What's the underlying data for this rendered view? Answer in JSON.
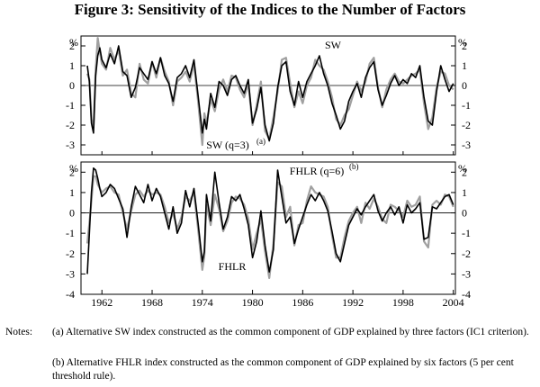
{
  "title": "Figure 3: Sensitivity of the Indices to the Number of Factors",
  "chart_data": [
    {
      "type": "line",
      "panel": "top",
      "unit_label": "%",
      "ylim": [
        -3.5,
        2.5
      ],
      "yticks": [
        2,
        1,
        0,
        -1,
        -2,
        -3
      ],
      "xlim": [
        1959.5,
        2004.25
      ],
      "series": [
        {
          "name": "SW",
          "color": "#000000",
          "x": [
            1960.25,
            1960.5,
            1960.75,
            1961,
            1961.25,
            1961.5,
            1961.75,
            1962,
            1962.5,
            1963,
            1963.5,
            1964,
            1964.5,
            1965,
            1965.5,
            1966,
            1966.5,
            1967,
            1967.5,
            1968,
            1968.5,
            1969,
            1969.5,
            1970,
            1970.5,
            1971,
            1971.5,
            1972,
            1972.5,
            1973,
            1973.5,
            1974,
            1974.25,
            1974.5,
            1975,
            1975.5,
            1976,
            1976.5,
            1977,
            1977.5,
            1978,
            1978.5,
            1979,
            1979.5,
            1980,
            1980.5,
            1981,
            1981.5,
            1982,
            1982.5,
            1983,
            1983.5,
            1984,
            1984.5,
            1985,
            1985.5,
            1986,
            1986.5,
            1987,
            1987.5,
            1988,
            1988.5,
            1989,
            1989.5,
            1990,
            1990.5,
            1991,
            1991.5,
            1992,
            1992.5,
            1993,
            1993.5,
            1994,
            1994.5,
            1995,
            1995.5,
            1996,
            1996.5,
            1997,
            1997.5,
            1998,
            1998.5,
            1999,
            1999.5,
            2000,
            2000.5,
            2001,
            2001.5,
            2002,
            2002.5,
            2003,
            2003.5,
            2004
          ],
          "y": [
            1.0,
            0.2,
            -1.9,
            -2.4,
            0.5,
            1.5,
            1.9,
            1.3,
            0.9,
            1.6,
            1.1,
            2.0,
            0.7,
            0.5,
            -0.6,
            -0.1,
            0.9,
            0.6,
            0.3,
            1.2,
            0.6,
            1.4,
            0.5,
            0.1,
            -0.8,
            0.4,
            0.6,
            1.0,
            0.4,
            1.3,
            -0.5,
            -2.4,
            -1.7,
            -2.2,
            -0.4,
            -1.1,
            0.2,
            0.0,
            -0.5,
            0.3,
            0.5,
            0.0,
            -0.4,
            0.3,
            -1.9,
            -1.2,
            -0.1,
            -2.0,
            -2.8,
            -1.9,
            -0.1,
            1.0,
            1.2,
            -0.3,
            -1.0,
            0.2,
            -0.6,
            0.2,
            0.6,
            1.0,
            1.5,
            0.6,
            0.0,
            -0.9,
            -1.5,
            -2.2,
            -1.8,
            -0.8,
            -0.3,
            0.1,
            -0.6,
            0.4,
            0.9,
            1.2,
            -0.2,
            -1.0,
            -0.5,
            0.1,
            0.5,
            0.0,
            0.3,
            0.1,
            0.6,
            0.4,
            1.0,
            -0.6,
            -1.8,
            -2.0,
            -0.3,
            1.0,
            0.3,
            -0.3,
            0.1
          ]
        },
        {
          "name": "SW (q=3)",
          "color": "#a0a0a0",
          "x": [
            1960.25,
            1960.5,
            1960.75,
            1961,
            1961.25,
            1961.5,
            1961.75,
            1962,
            1962.5,
            1963,
            1963.5,
            1964,
            1964.5,
            1965,
            1965.5,
            1966,
            1966.5,
            1967,
            1967.5,
            1968,
            1968.5,
            1969,
            1969.5,
            1970,
            1970.5,
            1971,
            1971.5,
            1972,
            1972.5,
            1973,
            1973.5,
            1974,
            1974.25,
            1974.5,
            1975,
            1975.5,
            1976,
            1976.5,
            1977,
            1977.5,
            1978,
            1978.5,
            1979,
            1979.5,
            1980,
            1980.5,
            1981,
            1981.5,
            1982,
            1982.5,
            1983,
            1983.5,
            1984,
            1984.5,
            1985,
            1985.5,
            1986,
            1986.5,
            1987,
            1987.5,
            1988,
            1988.5,
            1989,
            1989.5,
            1990,
            1990.5,
            1991,
            1991.5,
            1992,
            1992.5,
            1993,
            1993.5,
            1994,
            1994.5,
            1995,
            1995.5,
            1996,
            1996.5,
            1997,
            1997.5,
            1998,
            1998.5,
            1999,
            1999.5,
            2000,
            2000.5,
            2001,
            2001.5,
            2002,
            2002.5,
            2003,
            2003.5,
            2004
          ],
          "y": [
            0.6,
            0.3,
            -1.7,
            -2.1,
            0.8,
            2.4,
            1.7,
            1.1,
            0.8,
            1.9,
            1.3,
            1.8,
            0.5,
            0.8,
            -0.4,
            -0.6,
            1.1,
            0.3,
            0.1,
            1.2,
            0.4,
            1.4,
            0.7,
            0.2,
            -1.0,
            0.2,
            0.4,
            0.7,
            0.2,
            1.1,
            -0.8,
            -3.0,
            -1.4,
            -1.9,
            -0.7,
            -1.3,
            -0.2,
            0.3,
            -0.3,
            0.5,
            0.4,
            -0.2,
            -0.6,
            0.1,
            -2.0,
            -1.0,
            0.2,
            -2.3,
            -2.7,
            -1.6,
            -0.3,
            1.3,
            1.4,
            0.1,
            -1.1,
            -0.3,
            -0.9,
            0.0,
            0.4,
            1.3,
            1.0,
            0.8,
            0.2,
            -0.6,
            -1.7,
            -2.0,
            -1.5,
            -1.2,
            -0.5,
            0.2,
            -0.3,
            0.2,
            1.1,
            1.4,
            -0.1,
            -1.1,
            -0.2,
            0.3,
            0.6,
            0.2,
            0.1,
            0.3,
            0.5,
            0.6,
            0.8,
            -0.9,
            -2.2,
            -1.6,
            -0.1,
            0.7,
            0.6,
            0.0,
            -0.2
          ]
        }
      ],
      "annotations": [
        "SW",
        "SW (q=3)",
        "(a)"
      ]
    },
    {
      "type": "line",
      "panel": "bottom",
      "unit_label": "%",
      "ylim": [
        -4,
        2.5
      ],
      "yticks": [
        2,
        1,
        0,
        -1,
        -2,
        -3,
        -4
      ],
      "xlim": [
        1959.5,
        2004.25
      ],
      "xticks": [
        1962,
        1968,
        1974,
        1980,
        1986,
        1992,
        1998,
        2004
      ],
      "series": [
        {
          "name": "FHLR",
          "color": "#000000",
          "x": [
            1960.25,
            1960.5,
            1960.75,
            1961,
            1961.25,
            1961.5,
            1961.75,
            1962,
            1962.5,
            1963,
            1963.5,
            1964,
            1964.5,
            1965,
            1965.5,
            1966,
            1966.5,
            1967,
            1967.5,
            1968,
            1968.5,
            1969,
            1969.5,
            1970,
            1970.5,
            1971,
            1971.5,
            1972,
            1972.5,
            1973,
            1973.5,
            1974,
            1974.25,
            1974.5,
            1975,
            1975.5,
            1976,
            1976.5,
            1977,
            1977.5,
            1978,
            1978.5,
            1979,
            1979.5,
            1980,
            1980.5,
            1981,
            1981.5,
            1982,
            1982.5,
            1983,
            1983.5,
            1984,
            1984.5,
            1985,
            1985.5,
            1986,
            1986.5,
            1987,
            1987.5,
            1988,
            1988.5,
            1989,
            1989.5,
            1990,
            1990.5,
            1991,
            1991.5,
            1992,
            1992.5,
            1993,
            1993.5,
            1994,
            1994.5,
            1995,
            1995.5,
            1996,
            1996.5,
            1997,
            1997.5,
            1998,
            1998.5,
            1999,
            1999.5,
            2000,
            2000.5,
            2001,
            2001.5,
            2002,
            2002.5,
            2003,
            2003.5,
            2004
          ],
          "y": [
            -3.0,
            -1.0,
            1.0,
            2.2,
            2.1,
            1.7,
            1.2,
            0.8,
            1.0,
            1.4,
            1.2,
            0.7,
            0.2,
            -1.2,
            0.3,
            1.3,
            0.9,
            0.5,
            1.4,
            0.6,
            1.2,
            0.8,
            0.0,
            -0.8,
            0.3,
            -1.0,
            -0.5,
            1.1,
            0.3,
            1.2,
            -0.5,
            -2.4,
            -1.9,
            0.9,
            -0.4,
            2.0,
            0.5,
            -0.8,
            -0.2,
            0.8,
            0.6,
            0.9,
            0.2,
            -0.6,
            -2.2,
            -1.4,
            0.1,
            -1.6,
            -2.9,
            -1.8,
            2.1,
            0.8,
            -0.5,
            -0.2,
            -1.5,
            -0.8,
            -0.2,
            0.4,
            0.9,
            0.6,
            1.0,
            0.6,
            0.1,
            -0.9,
            -2.0,
            -2.4,
            -1.5,
            -0.6,
            -0.2,
            0.2,
            -0.1,
            0.3,
            0.6,
            0.9,
            0.1,
            -0.4,
            0.0,
            0.3,
            -0.1,
            0.3,
            -0.5,
            0.4,
            0.0,
            0.2,
            0.5,
            -1.3,
            -1.2,
            0.3,
            0.2,
            0.5,
            0.8,
            0.9,
            0.4
          ]
        },
        {
          "name": "FHLR (q=6)",
          "color": "#a0a0a0",
          "x": [
            1960.25,
            1960.5,
            1960.75,
            1961,
            1961.25,
            1961.5,
            1961.75,
            1962,
            1962.5,
            1963,
            1963.5,
            1964,
            1964.5,
            1965,
            1965.5,
            1966,
            1966.5,
            1967,
            1967.5,
            1968,
            1968.5,
            1969,
            1969.5,
            1970,
            1970.5,
            1971,
            1971.5,
            1972,
            1972.5,
            1973,
            1973.5,
            1974,
            1974.25,
            1974.5,
            1975,
            1975.5,
            1976,
            1976.5,
            1977,
            1977.5,
            1978,
            1978.5,
            1979,
            1979.5,
            1980,
            1980.5,
            1981,
            1981.5,
            1982,
            1982.5,
            1983,
            1983.5,
            1984,
            1984.5,
            1985,
            1985.5,
            1986,
            1986.5,
            1987,
            1987.5,
            1988,
            1988.5,
            1989,
            1989.5,
            1990,
            1990.5,
            1991,
            1991.5,
            1992,
            1992.5,
            1993,
            1993.5,
            1994,
            1994.5,
            1995,
            1995.5,
            1996,
            1996.5,
            1997,
            1997.5,
            1998,
            1998.5,
            1999,
            1999.5,
            2000,
            2000.5,
            2001,
            2001.5,
            2002,
            2002.5,
            2003,
            2003.5,
            2004
          ],
          "y": [
            -1.5,
            -0.5,
            0.6,
            1.8,
            1.8,
            1.4,
            1.2,
            1.0,
            1.2,
            1.3,
            1.0,
            0.9,
            0.0,
            -0.8,
            0.1,
            0.9,
            1.1,
            0.8,
            1.1,
            0.9,
            1.0,
            0.9,
            0.3,
            -0.5,
            0.0,
            -0.8,
            -0.2,
            0.8,
            0.6,
            1.0,
            -0.8,
            -2.8,
            -2.1,
            0.4,
            -0.6,
            0.9,
            0.2,
            -0.9,
            -0.4,
            0.5,
            0.8,
            0.7,
            0.4,
            -0.3,
            -1.8,
            -1.0,
            -0.3,
            -1.9,
            -3.2,
            -1.5,
            1.5,
            1.3,
            -0.2,
            0.3,
            -1.6,
            -0.6,
            -0.5,
            0.6,
            1.3,
            1.0,
            0.9,
            0.8,
            0.3,
            -1.1,
            -2.2,
            -2.2,
            -1.2,
            -0.4,
            0.0,
            0.3,
            -0.5,
            0.5,
            0.2,
            0.7,
            0.3,
            -0.3,
            -0.5,
            0.4,
            0.3,
            0.1,
            -0.2,
            0.6,
            0.3,
            0.4,
            0.8,
            -1.4,
            -1.7,
            0.4,
            0.6,
            0.4,
            0.9,
            0.8,
            0.3
          ]
        }
      ],
      "annotations": [
        "FHLR",
        "FHLR (q=6)",
        "(b)"
      ]
    }
  ],
  "notes": {
    "label": "Notes:",
    "a": "(a) Alternative SW index constructed as the common component of GDP explained by three factors (IC1 criterion).",
    "b": "(b) Alternative FHLR index constructed as the common component of GDP explained by six factors (5 per cent threshold rule)."
  }
}
